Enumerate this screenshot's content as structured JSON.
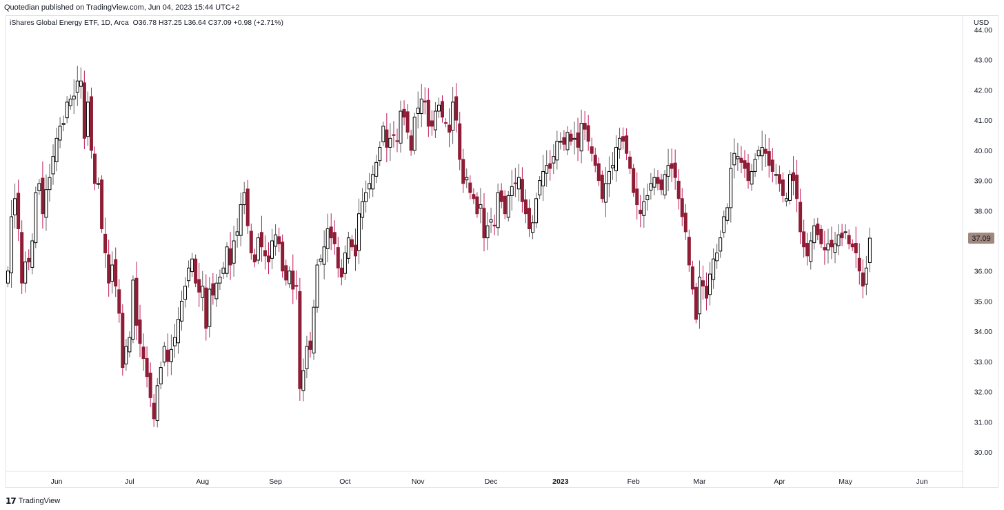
{
  "header": {
    "published_note": "Quotedian published on TradingView.com, Jun 04, 2023 15:44 UTC+2"
  },
  "legend": {
    "symbol": "iShares Global Energy ETF, 1D, Arca",
    "open": "O36.78",
    "high": "H37.25",
    "low": "L36.64",
    "close": "C37.09",
    "change": "+0.98 (+2.71%)"
  },
  "price_axis": {
    "currency": "USD",
    "last_price_label": "37.09"
  },
  "footer": {
    "logo_mark": "17",
    "brand": "TradingView"
  },
  "colors": {
    "up_body": "#ffffff",
    "up_border": "#000000",
    "down_body": "#8e1d35",
    "down_wick": "#c2185b",
    "price_tag": "#a1887f"
  },
  "chart_data": {
    "type": "candlestick",
    "ylim": [
      29.4,
      44.1
    ],
    "y_ticks": [
      "30.00",
      "31.00",
      "32.00",
      "33.00",
      "34.00",
      "35.00",
      "36.00",
      "37.00",
      "38.00",
      "39.00",
      "40.00",
      "41.00",
      "42.00",
      "43.00",
      "44.00"
    ],
    "x_tick_labels": [
      {
        "label": "Jun",
        "bar": 14
      },
      {
        "label": "Jul",
        "bar": 35
      },
      {
        "label": "Aug",
        "bar": 56
      },
      {
        "label": "Sep",
        "bar": 77
      },
      {
        "label": "Oct",
        "bar": 97
      },
      {
        "label": "Nov",
        "bar": 118
      },
      {
        "label": "Dec",
        "bar": 139
      },
      {
        "label": "2023",
        "bar": 159,
        "bold": true
      },
      {
        "label": "Feb",
        "bar": 180
      },
      {
        "label": "Mar",
        "bar": 199
      },
      {
        "label": "Apr",
        "bar": 222
      },
      {
        "label": "May",
        "bar": 241
      },
      {
        "label": "Jun",
        "bar": 263
      }
    ],
    "closes": [
      36.0,
      37.8,
      38.4,
      37.4,
      35.6,
      36.3,
      36.3,
      37.0,
      38.6,
      38.9,
      37.9,
      38.7,
      39.1,
      39.8,
      40.4,
      40.8,
      40.9,
      41.6,
      41.7,
      41.8,
      42.3,
      42.3,
      40.4,
      41.6,
      40.0,
      38.9,
      38.9,
      37.4,
      36.6,
      35.6,
      36.2,
      35.5,
      34.6,
      32.8,
      33.5,
      33.8,
      35.7,
      34.2,
      33.6,
      33.1,
      32.5,
      31.8,
      31.1,
      32.2,
      32.8,
      33.5,
      33.0,
      33.4,
      33.8,
      34.4,
      35.0,
      35.5,
      36.1,
      36.4,
      35.6,
      35.3,
      35.5,
      34.1,
      35.4,
      35.2,
      35.6,
      35.8,
      36.1,
      36.8,
      36.2,
      37.0,
      37.3,
      38.2,
      38.6,
      37.5,
      36.6,
      36.3,
      37.1,
      36.8,
      36.5,
      36.3,
      37.0,
      37.2,
      36.9,
      36.0,
      35.7,
      36.0,
      35.4,
      35.5,
      32.1,
      32.7,
      33.5,
      33.4,
      34.8,
      36.2,
      36.4,
      36.8,
      37.4,
      37.1,
      36.9,
      36.1,
      35.8,
      36.6,
      37.1,
      36.8,
      36.5,
      37.9,
      38.3,
      38.6,
      38.9,
      39.2,
      39.6,
      40.1,
      40.8,
      40.1,
      40.4,
      40.5,
      40.3,
      41.3,
      41.1,
      40.6,
      40.0,
      41.1,
      41.4,
      41.7,
      41.6,
      40.8,
      40.8,
      41.3,
      41.5,
      41.1,
      40.9,
      40.6,
      41.6,
      41.0,
      39.7,
      38.9,
      39.1,
      38.6,
      38.4,
      37.9,
      38.2,
      37.1,
      37.5,
      37.7,
      37.5,
      38.6,
      38.3,
      37.9,
      38.5,
      38.8,
      38.9,
      39.1,
      38.3,
      37.9,
      37.4,
      37.6,
      38.4,
      39.0,
      39.3,
      39.5,
      39.4,
      39.8,
      40.3,
      40.3,
      40.2,
      40.6,
      40.3,
      40.4,
      40.1,
      40.9,
      40.7,
      40.3,
      39.9,
      39.5,
      39.0,
      38.4,
      38.9,
      39.3,
      39.5,
      40.1,
      40.4,
      40.3,
      39.9,
      39.4,
      38.6,
      38.2,
      37.9,
      38.3,
      38.5,
      38.9,
      39.1,
      38.9,
      38.7,
      39.2,
      39.5,
      39.4,
      39.1,
      38.4,
      37.8,
      37.3,
      36.2,
      35.4,
      34.4,
      35.8,
      35.5,
      35.1,
      35.9,
      36.4,
      36.6,
      37.1,
      37.8,
      38.1,
      39.4,
      39.9,
      39.8,
      39.6,
      39.4,
      39.0,
      39.3,
      39.7,
      40.0,
      40.1,
      39.9,
      39.5,
      39.3,
      39.2,
      38.9,
      38.5,
      38.4,
      39.2,
      39.0,
      38.4,
      37.3,
      36.8,
      36.5,
      37.0,
      37.5,
      37.2,
      36.9,
      36.7,
      36.9,
      36.8,
      36.9,
      37.2,
      37.1,
      37.3,
      36.9,
      36.8,
      36.6,
      36.0,
      35.5,
      36.1,
      37.09
    ]
  }
}
